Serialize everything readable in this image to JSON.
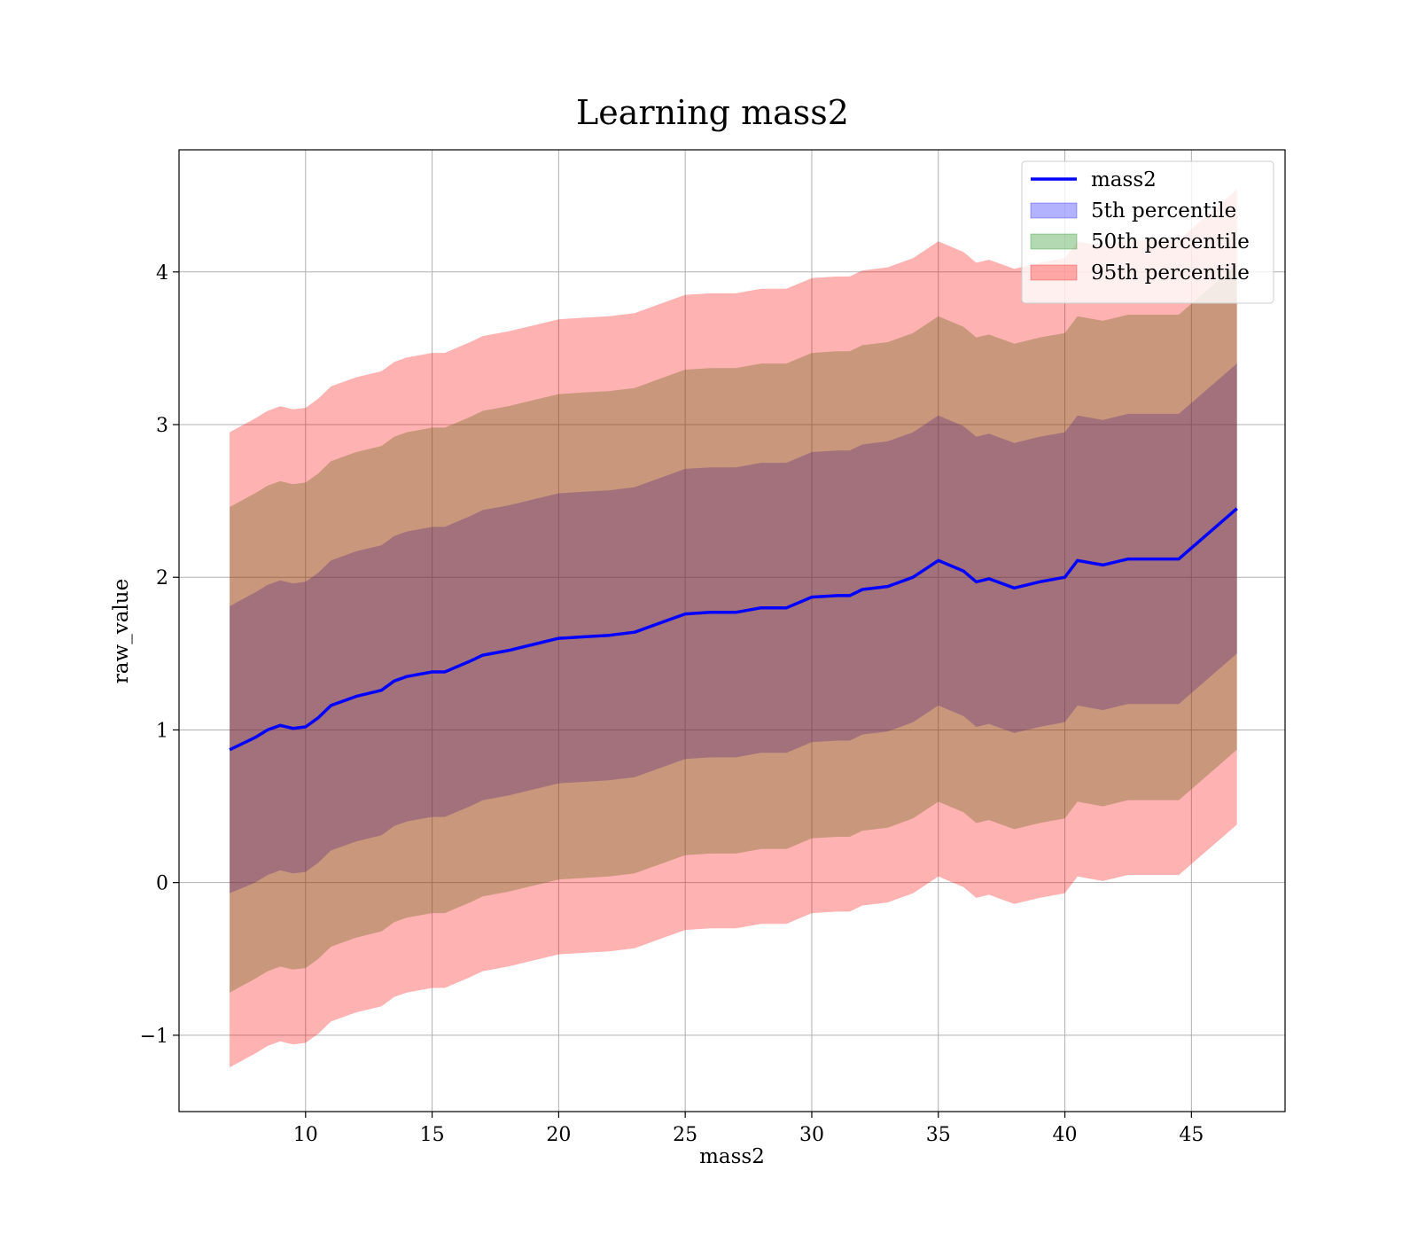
{
  "chart_data": {
    "type": "area",
    "title": "Learning mass2",
    "xlabel": "mass2",
    "ylabel": "raw_value",
    "xlim": [
      5,
      48.7
    ],
    "ylim": [
      -1.5,
      4.8
    ],
    "xticks": [
      10,
      15,
      20,
      25,
      30,
      35,
      40,
      45
    ],
    "xtick_labels": [
      "10",
      "15",
      "20",
      "25",
      "30",
      "35",
      "40",
      "45"
    ],
    "yticks": [
      -1,
      0,
      1,
      2,
      3,
      4
    ],
    "ytick_labels": [
      "−1",
      "0",
      "1",
      "2",
      "3",
      "4"
    ],
    "grid": true,
    "legend_position": "top-right",
    "x": [
      7.0,
      8.0,
      8.5,
      9.0,
      9.5,
      10.0,
      10.5,
      11.0,
      12.0,
      13.0,
      13.5,
      14.0,
      15.0,
      15.5,
      16.5,
      17.0,
      18.0,
      19.0,
      20.0,
      21.0,
      22.0,
      23.0,
      24.0,
      25.0,
      26.0,
      27.0,
      28.0,
      29.0,
      30.0,
      31.0,
      31.5,
      32.0,
      33.0,
      34.0,
      35.0,
      36.0,
      36.5,
      37.0,
      38.0,
      39.0,
      40.0,
      40.5,
      41.5,
      42.5,
      43.5,
      44.5,
      46.8
    ],
    "series": [
      {
        "name": "mass2",
        "kind": "line",
        "color": "#0000ff",
        "values": [
          0.87,
          0.95,
          1.0,
          1.03,
          1.01,
          1.02,
          1.08,
          1.16,
          1.22,
          1.26,
          1.32,
          1.35,
          1.38,
          1.38,
          1.45,
          1.49,
          1.52,
          1.56,
          1.6,
          1.61,
          1.62,
          1.64,
          1.7,
          1.76,
          1.77,
          1.77,
          1.8,
          1.8,
          1.87,
          1.88,
          1.88,
          1.92,
          1.94,
          2.0,
          2.11,
          2.04,
          1.97,
          1.99,
          1.93,
          1.97,
          2.0,
          2.11,
          2.08,
          2.12,
          2.12,
          2.12,
          2.45
        ]
      },
      {
        "name": "5th percentile",
        "kind": "band",
        "color": "#0000ff",
        "opacity": 0.3,
        "lower": [
          -0.07,
          0.0,
          0.05,
          0.08,
          0.06,
          0.07,
          0.13,
          0.21,
          0.27,
          0.31,
          0.37,
          0.4,
          0.43,
          0.43,
          0.5,
          0.54,
          0.57,
          0.61,
          0.65,
          0.66,
          0.67,
          0.69,
          0.75,
          0.81,
          0.82,
          0.82,
          0.85,
          0.85,
          0.92,
          0.93,
          0.93,
          0.97,
          0.99,
          1.05,
          1.16,
          1.09,
          1.02,
          1.04,
          0.98,
          1.02,
          1.05,
          1.16,
          1.13,
          1.17,
          1.17,
          1.17,
          1.5
        ],
        "upper": [
          1.81,
          1.9,
          1.95,
          1.98,
          1.96,
          1.97,
          2.03,
          2.11,
          2.17,
          2.21,
          2.27,
          2.3,
          2.33,
          2.33,
          2.4,
          2.44,
          2.47,
          2.51,
          2.55,
          2.56,
          2.57,
          2.59,
          2.65,
          2.71,
          2.72,
          2.72,
          2.75,
          2.75,
          2.82,
          2.83,
          2.83,
          2.87,
          2.89,
          2.95,
          3.06,
          2.99,
          2.92,
          2.94,
          2.88,
          2.92,
          2.95,
          3.06,
          3.03,
          3.07,
          3.07,
          3.07,
          3.4
        ]
      },
      {
        "name": "50th percentile",
        "kind": "band",
        "color": "#008000",
        "opacity": 0.3,
        "lower": [
          -0.72,
          -0.63,
          -0.58,
          -0.55,
          -0.57,
          -0.56,
          -0.5,
          -0.42,
          -0.36,
          -0.32,
          -0.26,
          -0.23,
          -0.2,
          -0.2,
          -0.13,
          -0.09,
          -0.06,
          -0.02,
          0.02,
          0.03,
          0.04,
          0.06,
          0.12,
          0.18,
          0.19,
          0.19,
          0.22,
          0.22,
          0.29,
          0.3,
          0.3,
          0.34,
          0.36,
          0.42,
          0.53,
          0.46,
          0.39,
          0.41,
          0.35,
          0.39,
          0.42,
          0.53,
          0.5,
          0.54,
          0.54,
          0.54,
          0.87
        ],
        "upper": [
          2.46,
          2.55,
          2.6,
          2.63,
          2.61,
          2.62,
          2.68,
          2.76,
          2.82,
          2.86,
          2.92,
          2.95,
          2.98,
          2.98,
          3.05,
          3.09,
          3.12,
          3.16,
          3.2,
          3.21,
          3.22,
          3.24,
          3.3,
          3.36,
          3.37,
          3.37,
          3.4,
          3.4,
          3.47,
          3.48,
          3.48,
          3.52,
          3.54,
          3.6,
          3.71,
          3.64,
          3.57,
          3.59,
          3.53,
          3.57,
          3.6,
          3.71,
          3.68,
          3.72,
          3.72,
          3.72,
          4.05
        ]
      },
      {
        "name": "95th percentile",
        "kind": "band",
        "color": "#ff0000",
        "opacity": 0.3,
        "lower": [
          -1.21,
          -1.12,
          -1.07,
          -1.04,
          -1.06,
          -1.05,
          -0.99,
          -0.91,
          -0.85,
          -0.81,
          -0.75,
          -0.72,
          -0.69,
          -0.69,
          -0.62,
          -0.58,
          -0.55,
          -0.51,
          -0.47,
          -0.46,
          -0.45,
          -0.43,
          -0.37,
          -0.31,
          -0.3,
          -0.3,
          -0.27,
          -0.27,
          -0.2,
          -0.19,
          -0.19,
          -0.15,
          -0.13,
          -0.07,
          0.04,
          -0.03,
          -0.1,
          -0.08,
          -0.14,
          -0.1,
          -0.07,
          0.04,
          0.01,
          0.05,
          0.05,
          0.05,
          0.38
        ],
        "upper": [
          2.95,
          3.04,
          3.09,
          3.12,
          3.1,
          3.11,
          3.17,
          3.25,
          3.31,
          3.35,
          3.41,
          3.44,
          3.47,
          3.47,
          3.54,
          3.58,
          3.61,
          3.65,
          3.69,
          3.7,
          3.71,
          3.73,
          3.79,
          3.85,
          3.86,
          3.86,
          3.89,
          3.89,
          3.96,
          3.97,
          3.97,
          4.01,
          4.03,
          4.09,
          4.2,
          4.13,
          4.06,
          4.08,
          4.02,
          4.06,
          4.09,
          4.2,
          4.17,
          4.21,
          4.21,
          4.21,
          4.54
        ]
      }
    ],
    "legend": [
      {
        "label": "mass2",
        "kind": "line",
        "color": "#0000ff"
      },
      {
        "label": "5th percentile",
        "kind": "patch",
        "color": "#0000ff"
      },
      {
        "label": "50th percentile",
        "kind": "patch",
        "color": "#008000"
      },
      {
        "label": "95th percentile",
        "kind": "patch",
        "color": "#ff0000"
      }
    ]
  }
}
